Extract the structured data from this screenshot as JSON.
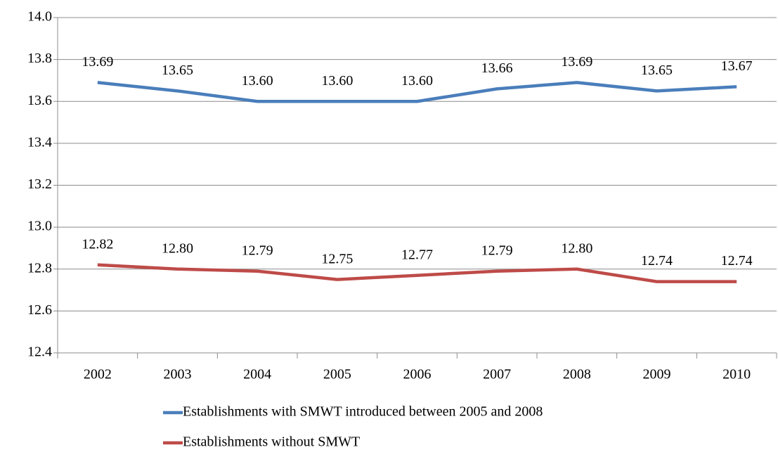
{
  "chart_data": {
    "type": "line",
    "categories": [
      "2002",
      "2003",
      "2004",
      "2005",
      "2006",
      "2007",
      "2008",
      "2009",
      "2010"
    ],
    "series": [
      {
        "name": "Establishments with SMWT introduced between 2005 and 2008",
        "color": "#4a7ebb",
        "values": [
          13.69,
          13.65,
          13.6,
          13.6,
          13.6,
          13.66,
          13.69,
          13.65,
          13.67
        ],
        "value_labels": [
          "13.69",
          "13.65",
          "13.60",
          "13.60",
          "13.60",
          "13.66",
          "13.69",
          "13.65",
          "13.67"
        ]
      },
      {
        "name": "Establishments without SMWT",
        "color": "#be4b48",
        "values": [
          12.82,
          12.8,
          12.79,
          12.75,
          12.77,
          12.79,
          12.8,
          12.74,
          12.74
        ],
        "value_labels": [
          "12.82",
          "12.80",
          "12.79",
          "12.75",
          "12.77",
          "12.79",
          "12.80",
          "12.74",
          "12.74"
        ]
      }
    ],
    "ylim": [
      12.4,
      14.0
    ],
    "yticks": [
      12.4,
      12.6,
      12.8,
      {
        "value": 13.0,
        "label": "13.0"
      },
      13.2,
      13.4,
      13.6,
      13.8,
      {
        "value": 14.0,
        "label": "14.0"
      }
    ],
    "grid": true,
    "legend": "bottom"
  }
}
